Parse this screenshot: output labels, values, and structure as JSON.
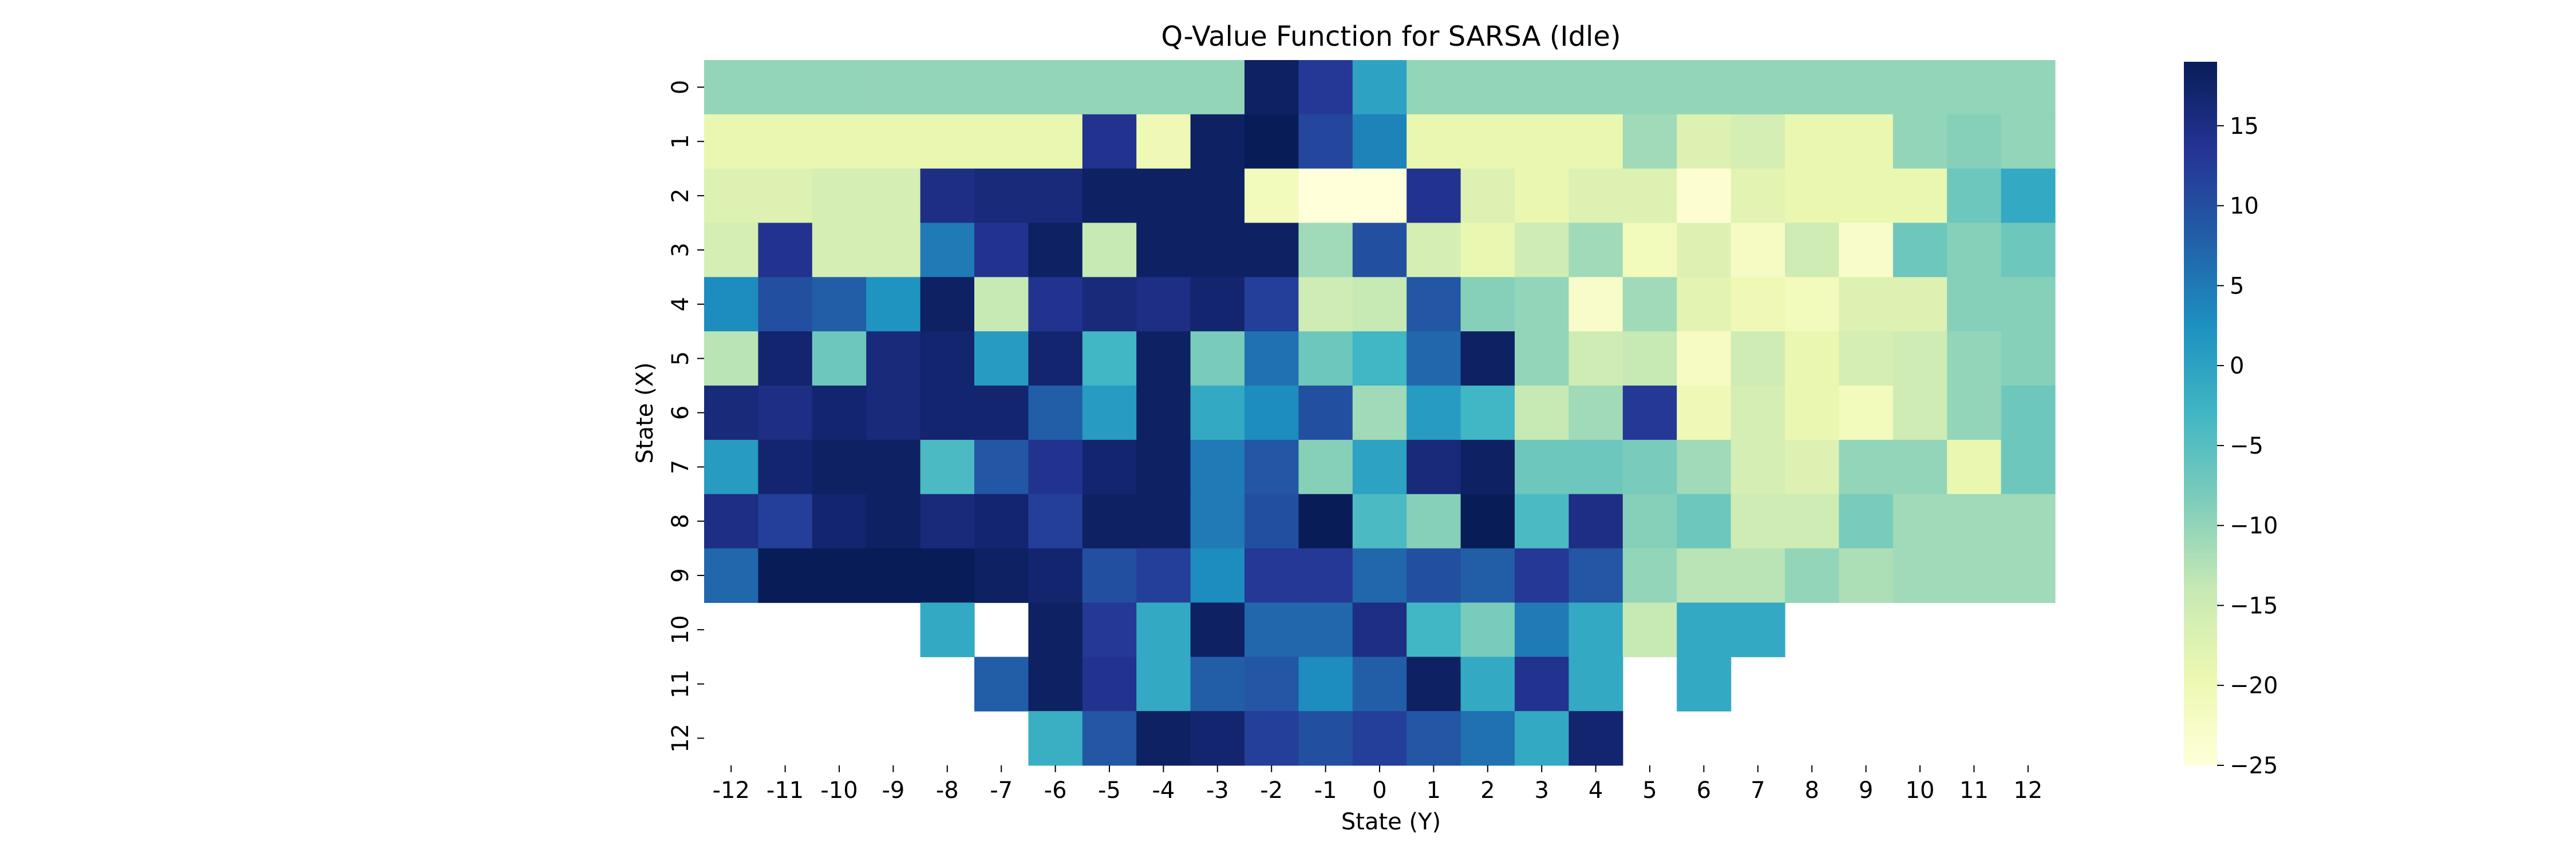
{
  "chart_data": {
    "type": "heatmap",
    "title": "Q-Value Function for SARSA (Idle)",
    "xlabel": "State (Y)",
    "ylabel": "State (X)",
    "x_categories": [
      "-12",
      "-11",
      "-10",
      "-9",
      "-8",
      "-7",
      "-6",
      "-5",
      "-4",
      "-3",
      "-2",
      "-1",
      "0",
      "1",
      "2",
      "3",
      "4",
      "5",
      "6",
      "7",
      "8",
      "9",
      "10",
      "11",
      "12"
    ],
    "y_categories": [
      "0",
      "1",
      "2",
      "3",
      "4",
      "5",
      "6",
      "7",
      "8",
      "9",
      "10",
      "11",
      "12"
    ],
    "values": [
      [
        -10,
        -10,
        -10,
        -10,
        -10,
        -10,
        -10,
        -10,
        -10,
        -10,
        18,
        13,
        0,
        -10,
        -10,
        -10,
        -10,
        -10,
        -10,
        -10,
        -10,
        -10,
        -10,
        -10,
        -10
      ],
      [
        -19,
        -19,
        -19,
        -19,
        -19,
        -19,
        -19,
        14,
        -20,
        18,
        19,
        11,
        4,
        -19,
        -19,
        -19,
        -19,
        -11,
        -17,
        -16,
        -19,
        -19,
        -10,
        -9,
        -10
      ],
      [
        -17,
        -17,
        -16,
        -16,
        15,
        16,
        16,
        18,
        18,
        18,
        -21,
        -25,
        -25,
        14,
        -17,
        -19,
        -17,
        -17,
        -24,
        -18,
        -19,
        -19,
        -19,
        -7,
        -1
      ],
      [
        -16,
        14,
        -16,
        -16,
        5,
        14,
        18,
        -14,
        18,
        18,
        18,
        -11,
        10,
        -16,
        -19,
        -15,
        -11,
        -21,
        -17,
        -22,
        -15,
        -23,
        -7,
        -9,
        -7
      ],
      [
        3,
        10,
        8,
        2,
        18,
        -14,
        14,
        16,
        15,
        17,
        12,
        -15,
        -14,
        9,
        -9,
        -10,
        -23,
        -11,
        -18,
        -20,
        -21,
        -17,
        -17,
        -9,
        -9
      ],
      [
        -13,
        17,
        -7,
        16,
        17,
        1,
        17,
        -3,
        18,
        -8,
        6,
        -7,
        -3,
        7,
        18,
        -10,
        -15,
        -14,
        -22,
        -15,
        -19,
        -16,
        -15,
        -10,
        -9
      ],
      [
        16,
        15,
        17,
        16,
        17,
        17,
        8,
        1,
        18,
        -1,
        3,
        10,
        -11,
        1,
        -3,
        -14,
        -11,
        13,
        -20,
        -16,
        -19,
        -21,
        -15,
        -10,
        -7
      ],
      [
        1,
        17,
        18,
        18,
        -4,
        9,
        14,
        17,
        18,
        5,
        9,
        -9,
        0,
        16,
        18,
        -7,
        -7,
        -8,
        -11,
        -16,
        -17,
        -10,
        -10,
        -19,
        -7
      ],
      [
        15,
        12,
        17,
        18,
        16,
        17,
        12,
        18,
        18,
        5,
        10,
        19,
        -4,
        -9,
        19,
        -4,
        15,
        -9,
        -7,
        -15,
        -15,
        -8,
        -11,
        -11,
        -11
      ],
      [
        7,
        19,
        19,
        19,
        19,
        18,
        17,
        10,
        12,
        3,
        13,
        13,
        7,
        10,
        8,
        13,
        9,
        -10,
        -13,
        -13,
        -10,
        -12,
        -11,
        -11,
        -11
      ],
      [
        null,
        null,
        null,
        null,
        -1,
        null,
        18,
        13,
        -1,
        18,
        7,
        7,
        15,
        -3,
        -8,
        5,
        -1,
        -14,
        -1,
        -1,
        null,
        null,
        null,
        null,
        null
      ],
      [
        null,
        null,
        null,
        null,
        null,
        8,
        18,
        14,
        -1,
        8,
        9,
        3,
        8,
        18,
        -1,
        14,
        -1,
        null,
        -1,
        null,
        null,
        null,
        null,
        null,
        null
      ],
      [
        null,
        null,
        null,
        null,
        null,
        null,
        -2,
        9,
        18,
        17,
        12,
        10,
        12,
        9,
        6,
        -1,
        17,
        null,
        null,
        null,
        null,
        null,
        null,
        null,
        null
      ]
    ],
    "vmin": -25,
    "vmax": 19,
    "colorbar_ticks": [
      15,
      10,
      5,
      0,
      -5,
      -10,
      -15,
      -20,
      -25
    ],
    "colormap": "YlGnBu",
    "colormap_stops": [
      "#ffffd9",
      "#edf8b1",
      "#c7e9b4",
      "#7fcdbb",
      "#41b6c4",
      "#1d91c0",
      "#225ea8",
      "#253494",
      "#081d58"
    ],
    "grid": false,
    "legend": "colorbar-right"
  }
}
